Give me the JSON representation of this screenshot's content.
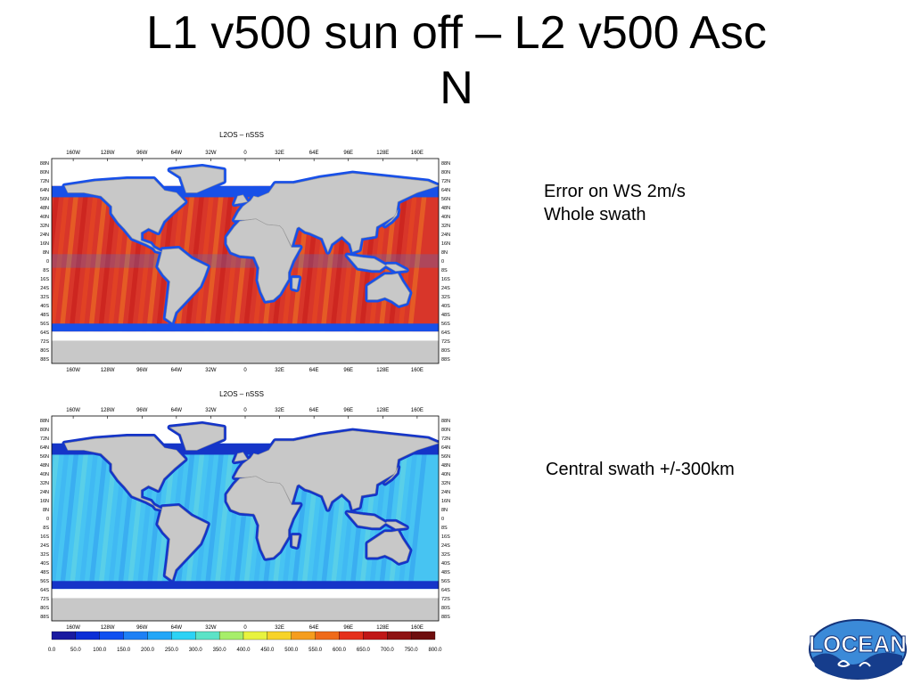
{
  "slide": {
    "title_line1": "L1 v500 sun off – L2 v500 Asc",
    "title_line2": "N"
  },
  "notes": {
    "top_line1": "Error on WS 2m/s",
    "top_line2": "Whole swath",
    "bottom": "Central swath +/-300km"
  },
  "maps": [
    {
      "plot_title": "L2OS – nSSS",
      "scheme": "whole-swath"
    },
    {
      "plot_title": "L2OS – nSSS",
      "scheme": "central-swath"
    }
  ],
  "axes": {
    "lon_labels": [
      "160W",
      "128W",
      "96W",
      "64W",
      "32W",
      "0",
      "32E",
      "64E",
      "96E",
      "128E",
      "160E"
    ],
    "lat_labels": [
      "88N",
      "80N",
      "72N",
      "64N",
      "56N",
      "48N",
      "40N",
      "32N",
      "24N",
      "16N",
      "8N",
      "0",
      "8S",
      "16S",
      "24S",
      "32S",
      "40S",
      "48S",
      "56S",
      "64S",
      "72S",
      "80S",
      "88S"
    ]
  },
  "colorbar": {
    "ticks": [
      "0.0",
      "50.0",
      "100.0",
      "150.0",
      "200.0",
      "250.0",
      "300.0",
      "350.0",
      "400.0",
      "450.0",
      "500.0",
      "550.0",
      "600.0",
      "650.0",
      "700.0",
      "750.0",
      "800.0"
    ],
    "colors": [
      "#1a1aa0",
      "#0b2ed6",
      "#1050f0",
      "#1e80f5",
      "#23a6f7",
      "#2dd2f5",
      "#5ce3c7",
      "#a7ee6a",
      "#e8f33f",
      "#f7d32a",
      "#f59d1e",
      "#ef6a1a",
      "#e5311c",
      "#c01717",
      "#8e1212",
      "#6e0e0e"
    ]
  },
  "logo": {
    "text": "LOCEAN"
  },
  "colors": {
    "land": "#c8c8c8",
    "ice": "#ffffff"
  }
}
